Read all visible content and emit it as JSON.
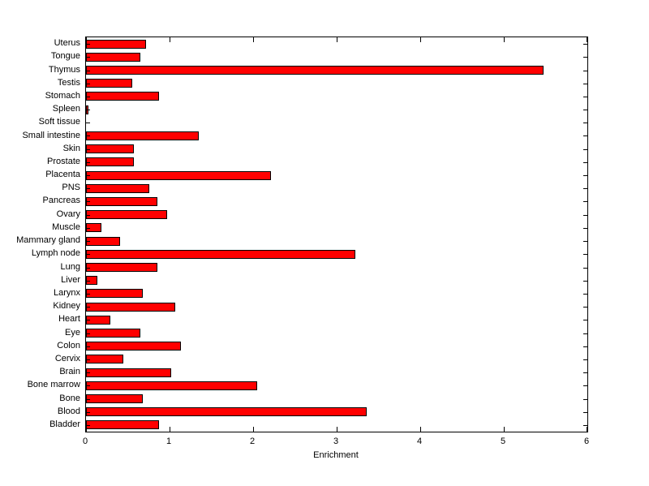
{
  "figure": {
    "background": "#ffffff"
  },
  "chart_data": {
    "type": "bar",
    "orientation": "horizontal",
    "title": "",
    "xlabel": "Enrichment",
    "ylabel": "",
    "xlim": [
      0,
      6
    ],
    "xticks": [
      0,
      1,
      2,
      3,
      4,
      5,
      6
    ],
    "grid": false,
    "legend": "none",
    "bar_fill": "#FF0000",
    "bar_edge": "#000000",
    "categories_top_to_bottom": [
      "Uterus",
      "Tongue",
      "Thymus",
      "Testis",
      "Stomach",
      "Spleen",
      "Soft tissue",
      "Small intestine",
      "Skin",
      "Prostate",
      "Placenta",
      "PNS",
      "Pancreas",
      "Ovary",
      "Muscle",
      "Mammary gland",
      "Lymph node",
      "Lung",
      "Liver",
      "Larynx",
      "Kidney",
      "Heart",
      "Eye",
      "Colon",
      "Cervix",
      "Brain",
      "Bone marrow",
      "Bone",
      "Blood",
      "Bladder"
    ],
    "values": [
      0.72,
      0.65,
      5.48,
      0.55,
      0.87,
      0.03,
      0.0,
      1.35,
      0.57,
      0.57,
      2.21,
      0.76,
      0.85,
      0.97,
      0.18,
      0.41,
      3.22,
      0.85,
      0.14,
      0.68,
      1.07,
      0.29,
      0.65,
      1.14,
      0.45,
      1.02,
      2.05,
      0.68,
      3.36,
      0.87
    ]
  }
}
